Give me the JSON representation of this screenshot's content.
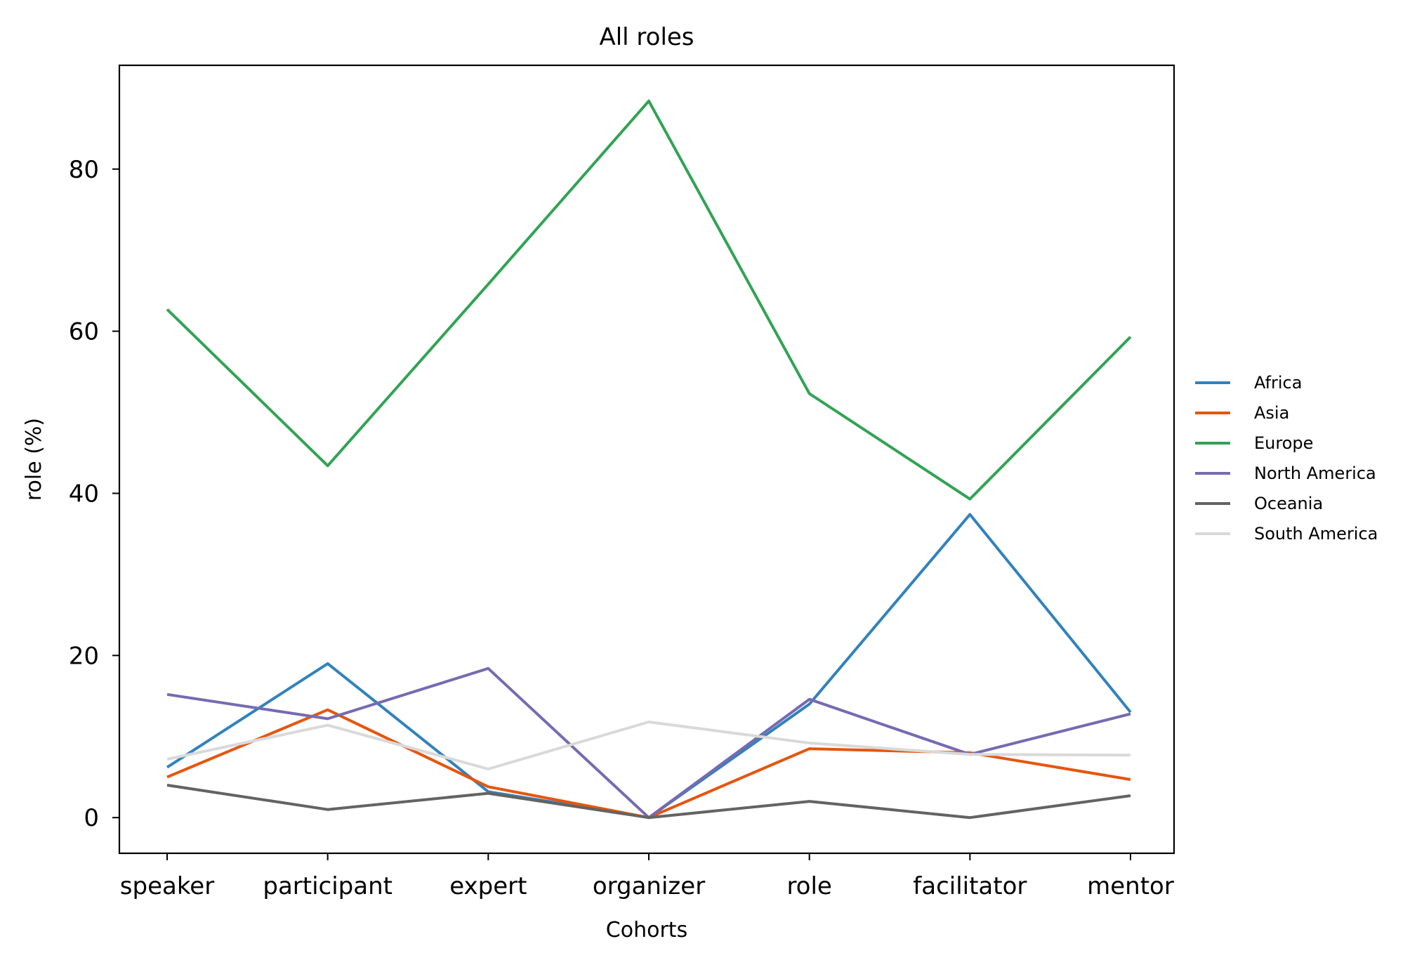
{
  "chart_data": {
    "type": "line",
    "title": "All roles",
    "xlabel": "Cohorts",
    "ylabel": "role (%)",
    "categories": [
      "speaker",
      "participant",
      "expert",
      "organizer",
      "role",
      "facilitator",
      "mentor"
    ],
    "ylim": [
      -4.4,
      92.8
    ],
    "yticks": [
      0,
      20,
      40,
      60,
      80
    ],
    "grid": false,
    "legend_position": "right",
    "series": [
      {
        "name": "Africa",
        "color": "#3182bd",
        "values": [
          6.2,
          19.0,
          3.2,
          0.0,
          14.0,
          37.4,
          13.0
        ]
      },
      {
        "name": "Asia",
        "color": "#e6550d",
        "values": [
          5.0,
          13.3,
          3.8,
          0.0,
          8.5,
          8.0,
          4.7
        ]
      },
      {
        "name": "Europe",
        "color": "#31a354",
        "values": [
          62.7,
          43.4,
          65.8,
          88.4,
          52.3,
          39.3,
          59.3
        ]
      },
      {
        "name": "North America",
        "color": "#756bb1",
        "values": [
          15.2,
          12.2,
          18.4,
          0.0,
          14.6,
          7.8,
          12.8
        ]
      },
      {
        "name": "Oceania",
        "color": "#636363",
        "values": [
          4.0,
          1.0,
          3.0,
          0.0,
          2.0,
          0.0,
          2.7
        ]
      },
      {
        "name": "South America",
        "color": "#d9d9d9",
        "values": [
          7.2,
          11.4,
          6.0,
          11.8,
          9.2,
          7.8,
          7.7
        ]
      }
    ]
  }
}
